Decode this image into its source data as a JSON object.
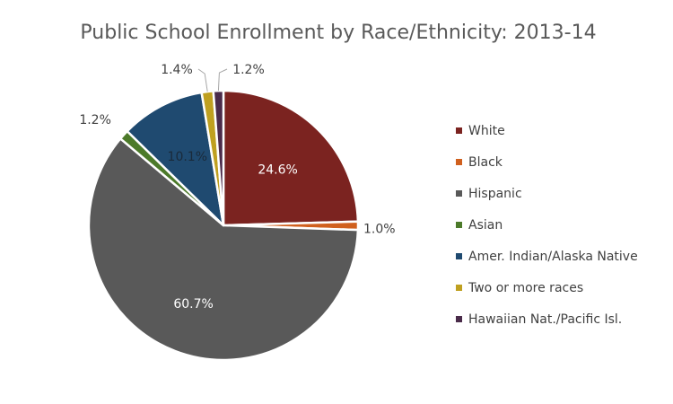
{
  "chart_data": {
    "type": "pie",
    "title": "Public School Enrollment by Race/Ethnicity: 2013-14",
    "legend_position": "right",
    "slices": [
      {
        "name": "White",
        "value": 24.6,
        "label": "24.6%",
        "color": "#7B2320"
      },
      {
        "name": "Black",
        "value": 1.0,
        "label": "1.0%",
        "color": "#D0601E"
      },
      {
        "name": "Hispanic",
        "value": 60.7,
        "label": "60.7%",
        "color": "#595959"
      },
      {
        "name": "Asian",
        "value": 1.2,
        "label": "1.2%",
        "color": "#4C7A2A"
      },
      {
        "name": "Amer. Indian/Alaska Native",
        "value": 10.1,
        "label": "10.1%",
        "color": "#1F4A70"
      },
      {
        "name": "Two or more races",
        "value": 1.4,
        "label": "1.4%",
        "color": "#BFA020"
      },
      {
        "name": "Hawaiian Nat./Pacific Isl.",
        "value": 1.2,
        "label": "1.2%",
        "color": "#4A2B4A"
      }
    ]
  }
}
